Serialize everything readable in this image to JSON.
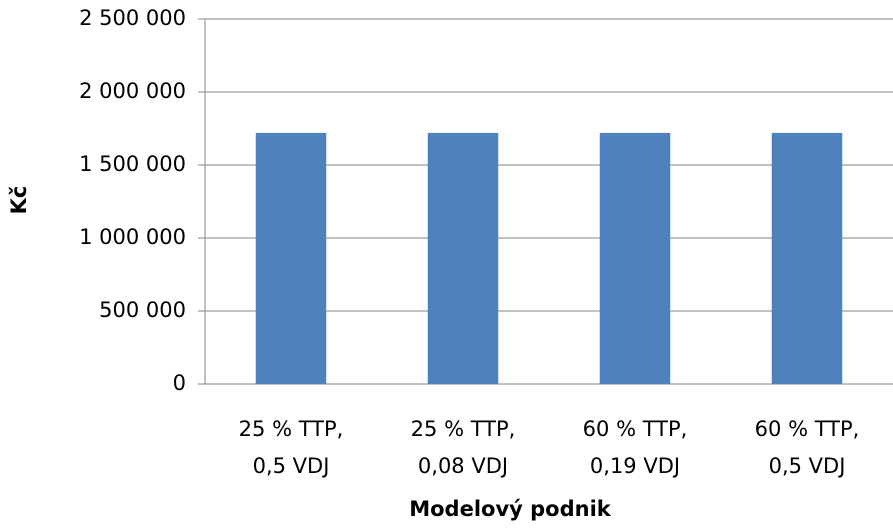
{
  "chart_data": {
    "type": "bar",
    "categories": [
      "25 % TTP,\n0,5 VDJ",
      "25 % TTP,\n0,08 VDJ",
      "60 % TTP,\n0,19 VDJ",
      "60 % TTP,\n0,5 VDJ"
    ],
    "values": [
      1720000,
      1720000,
      1720000,
      1720000
    ],
    "color": "#4f81bd",
    "xlabel": "Modelový podnik",
    "ylabel": "Kč",
    "ylim": [
      0,
      2500000
    ],
    "yticks": [
      0,
      {
        "value": 500000,
        "label": "500 000"
      },
      {
        "value": 1000000,
        "label": "1 000 000"
      },
      {
        "value": 1500000,
        "label": "1 500 000"
      },
      {
        "value": 2000000,
        "label": "2 000 000"
      },
      {
        "value": 2500000,
        "label": "2 500 000"
      }
    ],
    "grid": true
  }
}
